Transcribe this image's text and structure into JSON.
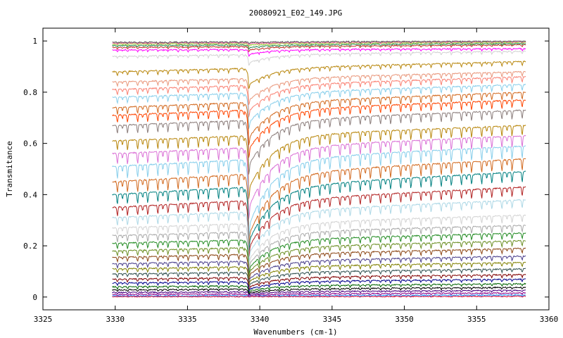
{
  "chart_data": {
    "type": "line",
    "title": "20080921_E02_149.JPG",
    "xlabel": "Wavenumbers (cm-1)",
    "ylabel": "Transmitance",
    "xlim": [
      3325,
      3360
    ],
    "ylim": [
      -0.05,
      1.05
    ],
    "x_ticks": [
      {
        "value": 3325,
        "label": "3325"
      },
      {
        "value": 3330,
        "label": "3330"
      },
      {
        "value": 3335,
        "label": "3335"
      },
      {
        "value": 3340,
        "label": "3340"
      },
      {
        "value": 3345,
        "label": "3345"
      },
      {
        "value": 3350,
        "label": "3350"
      },
      {
        "value": 3355,
        "label": "3355"
      },
      {
        "value": 3360,
        "label": "3360"
      }
    ],
    "y_ticks": [
      {
        "value": 0,
        "label": "0"
      },
      {
        "value": 0.2,
        "label": "0.2"
      },
      {
        "value": 0.4,
        "label": "0.4"
      },
      {
        "value": 0.6,
        "label": "0.6"
      },
      {
        "value": 0.8,
        "label": "0.8"
      },
      {
        "value": 1,
        "label": "1"
      }
    ],
    "grid": false,
    "legend": "none",
    "x_range_of_data": [
      3329.8,
      3358.4
    ],
    "absorption_edge_x": 3339.2,
    "line_spacing_cm1": 0.7,
    "series": [
      {
        "color": "#ff00ff",
        "left": 0.965,
        "right": 0.97
      },
      {
        "color": "#c0392b",
        "left": 0.975,
        "right": 0.985
      },
      {
        "color": "#2e8b57",
        "left": 0.982,
        "right": 0.99
      },
      {
        "color": "#9acd32",
        "left": 0.988,
        "right": 0.995
      },
      {
        "color": "#ff69b4",
        "left": 0.992,
        "right": 0.998
      },
      {
        "color": "#555555",
        "left": 0.995,
        "right": 1.0
      },
      {
        "color": "#d3d3d3",
        "left": 0.94,
        "right": 0.96
      },
      {
        "color": "#b8860b",
        "left": 0.88,
        "right": 0.92
      },
      {
        "color": "#e9967a",
        "left": 0.84,
        "right": 0.88
      },
      {
        "color": "#fa8072",
        "left": 0.81,
        "right": 0.86
      },
      {
        "color": "#87ceeb",
        "left": 0.78,
        "right": 0.83
      },
      {
        "color": "#d2691e",
        "left": 0.74,
        "right": 0.8
      },
      {
        "color": "#ff4500",
        "left": 0.71,
        "right": 0.77
      },
      {
        "color": "#8b7d7b",
        "left": 0.67,
        "right": 0.73
      },
      {
        "color": "#b8860b",
        "left": 0.61,
        "right": 0.67
      },
      {
        "color": "#da70d6",
        "left": 0.56,
        "right": 0.63
      },
      {
        "color": "#87ceeb",
        "left": 0.51,
        "right": 0.59
      },
      {
        "color": "#d2691e",
        "left": 0.45,
        "right": 0.54
      },
      {
        "color": "#008080",
        "left": 0.4,
        "right": 0.49
      },
      {
        "color": "#b22222",
        "left": 0.35,
        "right": 0.43
      },
      {
        "color": "#add8e6",
        "left": 0.31,
        "right": 0.38
      },
      {
        "color": "#d3d3d3",
        "left": 0.27,
        "right": 0.32
      },
      {
        "color": "#a9a9a9",
        "left": 0.24,
        "right": 0.28
      },
      {
        "color": "#228b22",
        "left": 0.21,
        "right": 0.25
      },
      {
        "color": "#6b8e23",
        "left": 0.18,
        "right": 0.22
      },
      {
        "color": "#8b4513",
        "left": 0.155,
        "right": 0.19
      },
      {
        "color": "#483d8b",
        "left": 0.13,
        "right": 0.16
      },
      {
        "color": "#808000",
        "left": 0.11,
        "right": 0.135
      },
      {
        "color": "#2f4f4f",
        "left": 0.09,
        "right": 0.11
      },
      {
        "color": "#800000",
        "left": 0.07,
        "right": 0.088
      },
      {
        "color": "#00008b",
        "left": 0.055,
        "right": 0.07
      },
      {
        "color": "#006400",
        "left": 0.04,
        "right": 0.052
      },
      {
        "color": "#000000",
        "left": 0.028,
        "right": 0.038
      },
      {
        "color": "#4b0082",
        "left": 0.018,
        "right": 0.026
      },
      {
        "color": "#8b008b",
        "left": 0.01,
        "right": 0.016
      },
      {
        "color": "#1e90ff",
        "left": 0.004,
        "right": 0.008
      },
      {
        "color": "#dc143c",
        "left": 0.001,
        "right": 0.003
      }
    ]
  }
}
